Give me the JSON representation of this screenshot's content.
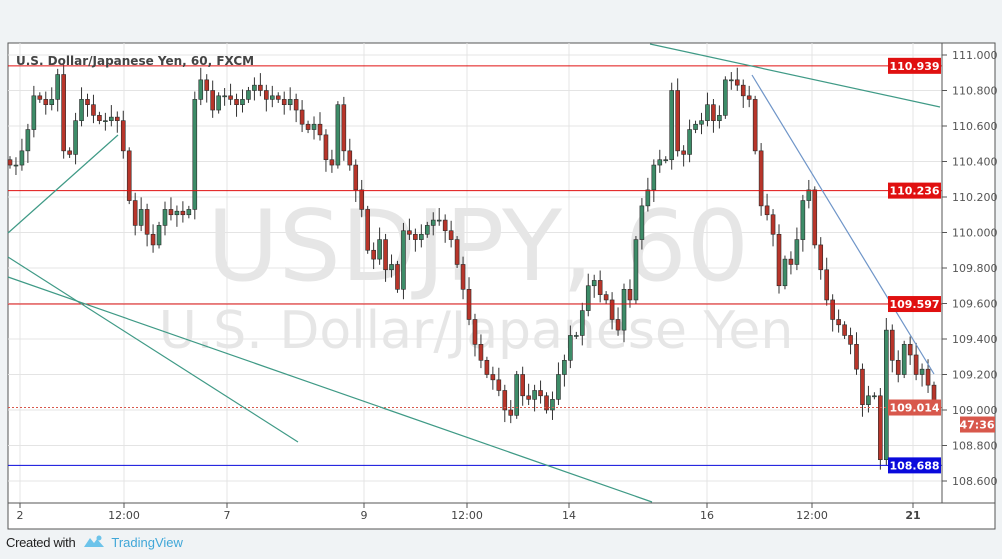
{
  "chart_data": {
    "type": "candlestick",
    "title": "U.S. Dollar/Japanese Yen, 60, FXCM",
    "watermark": {
      "symbol": "USDJPY, 60",
      "description": "U.S. Dollar/Japanese Yen"
    },
    "ylim": [
      108.54,
      111.07
    ],
    "y_ticks": [
      "111.000",
      "110.800",
      "110.600",
      "110.400",
      "110.200",
      "110.000",
      "109.800",
      "109.600",
      "109.400",
      "109.200",
      "109.000",
      "108.800",
      "108.600"
    ],
    "x_ticks": [
      "2",
      "12:00",
      "7",
      "9",
      "12:00",
      "14",
      "16",
      "12:00",
      "21"
    ],
    "grid": true,
    "closes": [
      110.38,
      110.38,
      110.46,
      110.58,
      110.77,
      110.75,
      110.72,
      110.75,
      110.89,
      110.46,
      110.44,
      110.63,
      110.75,
      110.72,
      110.66,
      110.63,
      110.63,
      110.65,
      110.63,
      110.46,
      110.18,
      110.04,
      110.13,
      109.99,
      109.93,
      110.04,
      110.13,
      110.1,
      110.12,
      110.1,
      110.13,
      110.75,
      110.86,
      110.8,
      110.69,
      110.77,
      110.77,
      110.75,
      110.72,
      110.75,
      110.8,
      110.83,
      110.8,
      110.75,
      110.77,
      110.75,
      110.72,
      110.75,
      110.69,
      110.61,
      110.58,
      110.61,
      110.55,
      110.41,
      110.38,
      110.72,
      110.46,
      110.38,
      110.24,
      110.13,
      109.9,
      109.85,
      109.96,
      109.79,
      109.82,
      109.68,
      110.01,
      109.99,
      109.96,
      109.99,
      110.04,
      110.07,
      110.07,
      110.01,
      109.96,
      109.82,
      109.68,
      109.51,
      109.37,
      109.28,
      109.2,
      109.17,
      109.11,
      109.0,
      108.97,
      109.2,
      109.08,
      109.06,
      109.11,
      109.08,
      109.0,
      109.06,
      109.2,
      109.28,
      109.42,
      109.42,
      109.56,
      109.7,
      109.73,
      109.65,
      109.62,
      109.51,
      109.45,
      109.68,
      109.62,
      109.96,
      110.15,
      110.24,
      110.38,
      110.41,
      110.41,
      110.8,
      110.46,
      110.44,
      110.58,
      110.61,
      110.63,
      110.72,
      110.63,
      110.66,
      110.86,
      110.86,
      110.83,
      110.77,
      110.75,
      110.46,
      110.15,
      110.1,
      109.99,
      109.7,
      109.85,
      109.82,
      109.96,
      110.18,
      110.24,
      109.93,
      109.79,
      109.62,
      109.51,
      109.48,
      109.42,
      109.37,
      109.23,
      109.03,
      109.08,
      109.08,
      108.72,
      109.45,
      109.28,
      109.2,
      109.37,
      109.31,
      109.2,
      109.23,
      109.14,
      109.014
    ],
    "levels": [
      {
        "price": 110.939,
        "label": "110.939",
        "color": "#e01010",
        "style": "solid"
      },
      {
        "price": 110.236,
        "label": "110.236",
        "color": "#e01010",
        "style": "solid"
      },
      {
        "price": 109.597,
        "label": "109.597",
        "color": "#e01010",
        "style": "solid"
      },
      {
        "price": 108.688,
        "label": "108.688",
        "color": "#0a0adc",
        "style": "solid"
      },
      {
        "price": 109.014,
        "label": "109.014",
        "color": "#d8584c",
        "style": "dotted"
      }
    ],
    "countdown": "47:36",
    "colors": {
      "up": "#3d8c68",
      "down": "#b8352a",
      "trend_green": "#3f9a86",
      "trend_blue": "#6f95c8"
    }
  },
  "footer": {
    "created_with": "Created with",
    "brand": "TradingView"
  }
}
